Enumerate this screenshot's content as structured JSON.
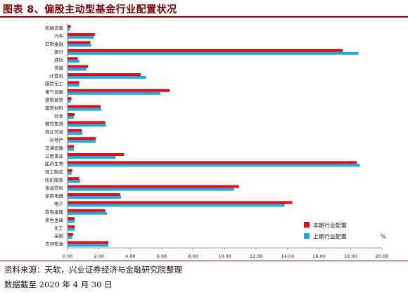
{
  "header": {
    "title": "图表 8、偏股主动型基金行业配置状况"
  },
  "footer": {
    "source": "资料来源：天软，兴业证券经济与金融研究院整理",
    "date_note": "数据截至 2020 年 4 月 30 日"
  },
  "chart_data": {
    "type": "bar",
    "orientation": "horizontal",
    "unit_label": "%",
    "xlim": [
      0,
      20
    ],
    "xticks": [
      "0.00",
      "2.00",
      "4.00",
      "6.00",
      "8.00",
      "10.00",
      "12.00",
      "14.00",
      "16.00",
      "18.00",
      "20.00"
    ],
    "legend_position": "bottom-right",
    "categories": [
      "机械设备",
      "汽车",
      "非银金融",
      "银行",
      "通信",
      "传媒",
      "计算机",
      "国防军工",
      "电气设备",
      "建筑装饰",
      "建筑材料",
      "综合",
      "餐饮旅游",
      "商业贸易",
      "房地产",
      "交通运输",
      "公用事业",
      "医药生物",
      "轻工制造",
      "纺织服装",
      "食品饮料",
      "家用电器",
      "电子",
      "有色金属",
      "黑色金属",
      "化工",
      "采掘",
      "农林牧渔"
    ],
    "series": [
      {
        "name": "本期行业配置",
        "color": "#e0101a",
        "values": [
          0.2,
          1.75,
          1.45,
          17.5,
          0.65,
          1.3,
          4.65,
          0.75,
          6.5,
          0.25,
          2.1,
          0.45,
          2.4,
          0.9,
          1.8,
          0.4,
          3.6,
          18.4,
          0.3,
          0.75,
          10.9,
          3.35,
          14.3,
          2.4,
          0.45,
          0.45,
          0.35,
          2.6
        ]
      },
      {
        "name": "上期行业配置",
        "color": "#1ea8e0",
        "values": [
          0.15,
          1.65,
          1.5,
          18.5,
          0.75,
          1.2,
          5.0,
          0.75,
          5.9,
          0.2,
          2.15,
          0.4,
          2.45,
          0.95,
          1.8,
          0.4,
          3.05,
          18.6,
          0.25,
          0.8,
          10.6,
          3.4,
          13.8,
          2.5,
          0.45,
          0.45,
          0.3,
          2.6
        ]
      }
    ]
  }
}
